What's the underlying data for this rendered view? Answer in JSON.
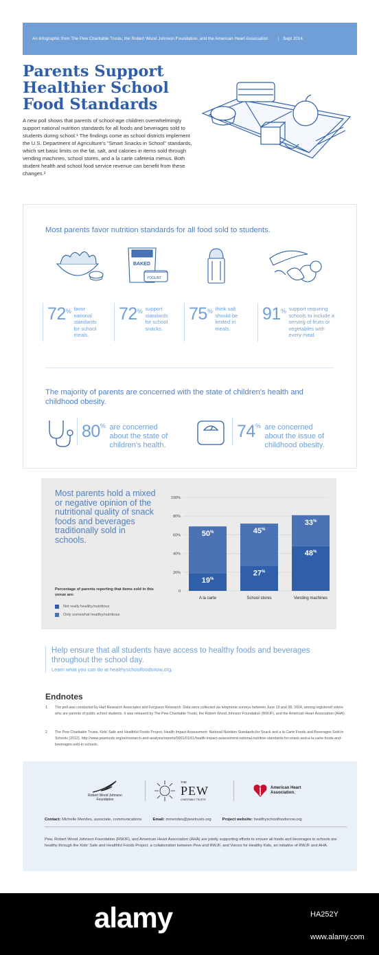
{
  "header": {
    "left": "An infographic from The Pew Charitable Trusts, the Robert Wood Johnson Foundation, and the American Heart Association",
    "date": "Sept 2014"
  },
  "title": [
    "Parents Support",
    "Healthier School",
    "Food Standards"
  ],
  "intro": "A new poll shows that parents of school-age children overwhelmingly support national nutrition standards for all foods and beverages sold to students during school.¹ The findings come as school districts implement the U.S. Department of Agriculture's \"Smart Snacks in School\" standards, which set basic limits on the fat, salt, and calories in items sold through vending machines, school stores, and a la carte cafeteria menus. Both student health and school food service revenue can benefit from these changes.²",
  "section1": {
    "heading": "Most parents favor nutrition standards for all food sold to students.",
    "stats": [
      {
        "num": "72",
        "text": "favor national standards for school meals."
      },
      {
        "num": "72",
        "text": "support standards for school snacks."
      },
      {
        "num": "75",
        "text": "think salt should be limited in meals."
      },
      {
        "num": "91",
        "text": "support requiring schools to include a serving of fruits or vegetables with every meal."
      }
    ]
  },
  "section2": {
    "heading": "The majority of parents are concerned with the state of children's health and childhood obesity.",
    "stats": [
      {
        "num": "80",
        "text": "are concerned about the state of children's health."
      },
      {
        "num": "74",
        "text": "are concerned about the issue of childhood obesity."
      }
    ]
  },
  "pct": "%",
  "illus_labels": {
    "chips": "BAKED",
    "yogurt": "YOGURT"
  },
  "panel2": {
    "headline": "Most parents hold a mixed or negative opinion of the nutritional quality of snack foods and beverages traditionally sold in schools.",
    "legend_title": "Percentage of parents reporting that items sold in this venue are:",
    "legend": [
      {
        "label": "Not really healthy/nutritious",
        "color": "#2e5fa8"
      },
      {
        "label": "Only somewhat healthy/nutritious",
        "color": "#4a72b4"
      }
    ]
  },
  "chart_data": {
    "type": "bar",
    "stacked": true,
    "categories": [
      "A la carte",
      "School stores",
      "Vending machines"
    ],
    "series": [
      {
        "name": "Not really healthy/nutritious",
        "values": [
          19,
          27,
          48
        ]
      },
      {
        "name": "Only somewhat healthy/nutritious",
        "values": [
          50,
          45,
          33
        ]
      }
    ],
    "yticks": [
      "0",
      "20%",
      "40%",
      "60%",
      "80%",
      "100%"
    ],
    "ylim": [
      0,
      100
    ],
    "labels": [
      "19",
      "27",
      "48",
      "50",
      "45",
      "33"
    ]
  },
  "cta": {
    "main": "Help ensure that all students have access to healthy foods and beverages throughout the school day.",
    "sub": "Learn what you can do at healthyschoolfoodsnow.org."
  },
  "endnotes": {
    "title": "Endnotes",
    "items": [
      {
        "n": "1",
        "text": "The poll was conducted by Hart Research Associates and Ferguson Research. Data were collected via telephone surveys between June 19 and 28, 2014, among registered voters who are parents of public school students. It was released by The Pew Charitable Trusts, the Robert Wood Johnson Foundation (RWJF), and the American Heart Association (AHA)."
      },
      {
        "n": "2",
        "text": "The Pew Charitable Trusts, Kids' Safe and Healthful Foods Project, Health Impact Assessment: National Nutrition Standards for Snack and a la Carte Foods and Beverages Sold in Schools (2012), http://www.pewtrusts.org/en/research-and-analysis/reports/0001/01/01/health-impact-assessment-national-nutrition-standards-for-snack-and-a-la-carte-foods-and-beverages-sold-in-schools."
      }
    ]
  },
  "footer": {
    "rwjf": "Robert Wood Johnson Foundation",
    "pew_the": "THE",
    "pew": "PEW",
    "pew_sub": "CHARITABLE TRUSTS",
    "aha": "American Heart Association.",
    "contact_label": "Contact:",
    "contact": "Michelle Mendes, associate, communications",
    "email_label": "Email:",
    "email": "mmendes@pewtrusts.org",
    "web_label": "Project website:",
    "web": "healthyschoolfoodsnow.org",
    "note": "Pew, Robert Wood Johnson Foundation (RWJF), and American Heart Association (AHA) are jointly supporting efforts to ensure all foods and beverages in schools are healthy through the Kids' Safe and Healthful Foods Project, a collaboration between Pew and RWJF, and Voices for Healthy Kids, an initiative of RWJF and AHA."
  },
  "stock": {
    "brand": "alamy",
    "code": "HA252Y",
    "url": "www.alamy.com"
  }
}
